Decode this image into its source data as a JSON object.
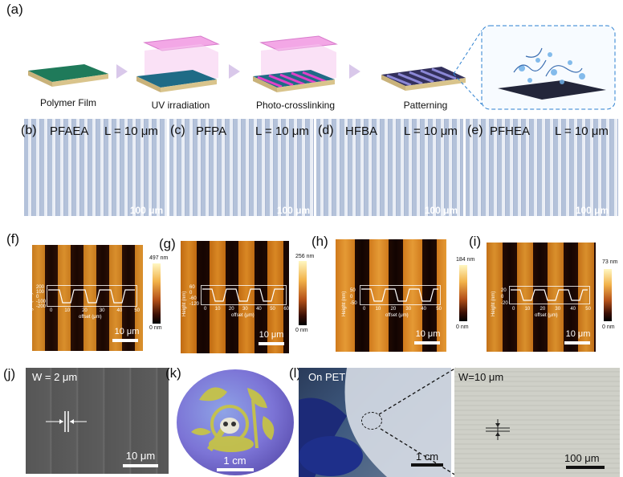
{
  "panel_a": {
    "label": "(a)",
    "steps": [
      "Polymer Film",
      "UV irradiation",
      "Photo-crosslinking",
      "Patterning"
    ]
  },
  "optical_panels": [
    {
      "label": "(b)",
      "material": "PFAEA",
      "length": "L = 10 μm",
      "scale": "100 μm"
    },
    {
      "label": "(c)",
      "material": "PFPA",
      "length": "L = 10 μm",
      "scale": "100 μm"
    },
    {
      "label": "(d)",
      "material": "HFBA",
      "length": "L = 10 μm",
      "scale": "100 μm"
    },
    {
      "label": "(e)",
      "material": "PFHEA",
      "length": "L = 10 μm",
      "scale": "100 μm"
    }
  ],
  "afm_panels": [
    {
      "label": "(f)",
      "cbar_max": "497 nm",
      "cbar_min": "0 nm",
      "scale": "10 μm",
      "ylabel": "Height (nm)",
      "yticks": [
        "200",
        "100",
        "0",
        "-100",
        "-200"
      ],
      "xticks": [
        "0",
        "10",
        "20",
        "30",
        "40",
        "50"
      ],
      "xlabel": "offset (μm)"
    },
    {
      "label": "(g)",
      "cbar_max": "256 nm",
      "cbar_min": "0 nm",
      "scale": "10 μm",
      "ylabel": "Height (nm)",
      "yticks": [
        "60",
        "0",
        "-60",
        "-120"
      ],
      "xticks": [
        "0",
        "10",
        "20",
        "30",
        "40",
        "50",
        "60"
      ],
      "xlabel": "offset (μm)"
    },
    {
      "label": "(h)",
      "cbar_max": "184 nm",
      "cbar_min": "0 nm",
      "scale": "10 μm",
      "ylabel": "Height (nm)",
      "yticks": [
        "50",
        "0",
        "-50"
      ],
      "xticks": [
        "0",
        "10",
        "20",
        "30",
        "40",
        "50"
      ],
      "xlabel": "offset (μm)"
    },
    {
      "label": "(i)",
      "cbar_max": "73 nm",
      "cbar_min": "0 nm",
      "scale": "10 μm",
      "ylabel": "Height (nm)",
      "yticks": [
        "20",
        "0",
        "-20"
      ],
      "xticks": [
        "0",
        "10",
        "20",
        "30",
        "40",
        "50"
      ],
      "xlabel": "offset (μm)"
    }
  ],
  "panel_j": {
    "label": "(j)",
    "width": "W = 2 μm",
    "scale": "10 μm"
  },
  "panel_k": {
    "label": "(k)",
    "scale": "1 cm"
  },
  "panel_l": {
    "label": "(l)",
    "substrate": "On PET",
    "scale": "1 cm",
    "zoom_width": "W=10 μm",
    "zoom_scale": "100 μm"
  }
}
